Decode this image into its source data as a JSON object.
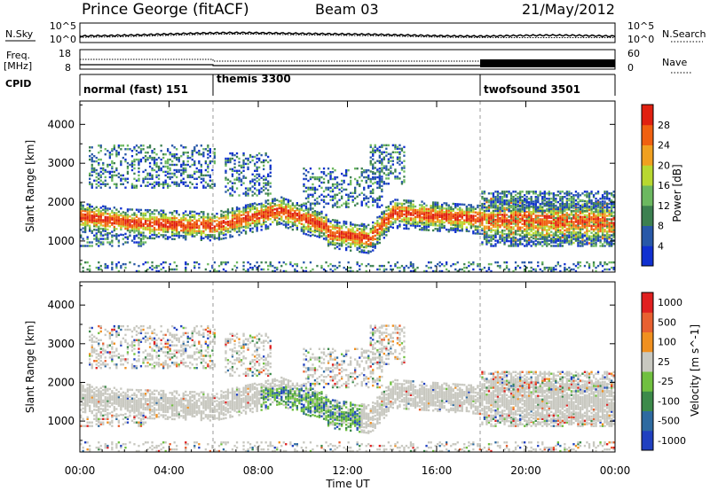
{
  "header": {
    "station": "Prince George (fitACF)",
    "beam": "Beam 03",
    "date": "21/May/2012"
  },
  "noise_panel": {
    "left_label": "N.Sky",
    "right_label": "N.Search",
    "left_tick_top": "10^5",
    "left_tick_bottom": "10^0",
    "right_tick_top": "10^5",
    "right_tick_bottom": "10^0"
  },
  "freq_panel": {
    "left_label_line1": "Freq.",
    "left_label_line2": "[MHz]",
    "right_label": "Nave",
    "left_tick_top": "18",
    "left_tick_bottom": "8",
    "right_tick_top": "60",
    "right_tick_bottom": "0"
  },
  "cpid_panel": {
    "label": "CPID",
    "modes": [
      {
        "name": "normal (fast) 151",
        "start_hour": 0
      },
      {
        "name": "themis 3300",
        "start_hour": 6
      },
      {
        "name": "twofsound 3501",
        "start_hour": 18
      }
    ]
  },
  "chart_data": [
    {
      "type": "heatmap",
      "name": "power",
      "ylabel": "Slant Range [km]",
      "y_ticks": [
        "1000",
        "2000",
        "3000",
        "4000"
      ],
      "ylim": [
        200,
        4600
      ],
      "colorbar_label": "Power [dB]",
      "colorbar_ticks": [
        "4",
        "8",
        "12",
        "16",
        "20",
        "24",
        "28"
      ],
      "colorbar_colors": [
        "#1030d0",
        "#2858a8",
        "#3c8050",
        "#6cb860",
        "#b8d830",
        "#f0a020",
        "#f06010",
        "#e02010"
      ]
    },
    {
      "type": "heatmap",
      "name": "velocity",
      "ylabel": "Slant Range [km]",
      "y_ticks": [
        "1000",
        "2000",
        "3000",
        "4000"
      ],
      "ylim": [
        200,
        4600
      ],
      "colorbar_label": "Velocity [m s^-1]",
      "colorbar_ticks": [
        "1000",
        "500",
        "100",
        "25",
        "-25",
        "-100",
        "-500",
        "-1000"
      ],
      "colorbar_colors": [
        "#2040c0",
        "#2e6aa0",
        "#3c8a4a",
        "#70c040",
        "#c8c8c0",
        "#f09020",
        "#e86030",
        "#e02020"
      ]
    }
  ],
  "x_axis": {
    "label": "Time UT",
    "ticks": [
      "00:00",
      "04:00",
      "08:00",
      "12:00",
      "16:00",
      "20:00",
      "00:00"
    ]
  }
}
